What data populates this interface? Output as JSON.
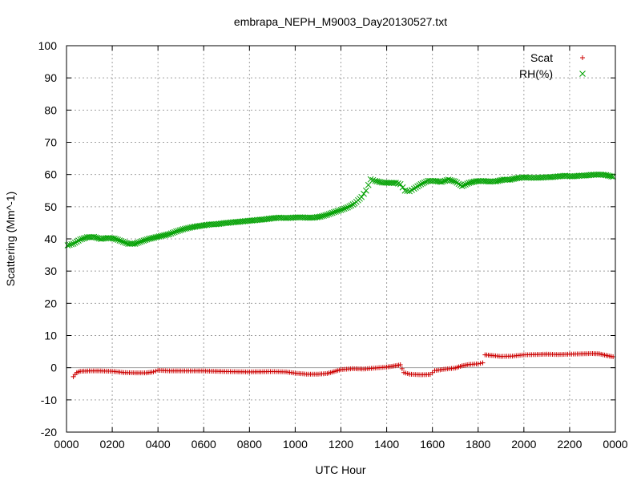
{
  "chart_data": {
    "type": "scatter",
    "title": "embrapa_NEPH_M9003_Day20130527.txt",
    "xlabel": "UTC Hour",
    "ylabel": "Scattering (Mm^-1)",
    "xlim": [
      0,
      24
    ],
    "ylim": [
      -20,
      100
    ],
    "x_ticks": [
      0,
      2,
      4,
      6,
      8,
      10,
      12,
      14,
      16,
      18,
      20,
      22,
      24
    ],
    "x_tick_labels": [
      "0000",
      "0200",
      "0400",
      "0600",
      "0800",
      "1000",
      "1200",
      "1400",
      "1600",
      "1800",
      "2000",
      "2200",
      "0000"
    ],
    "y_ticks": [
      -20,
      -10,
      0,
      10,
      20,
      30,
      40,
      50,
      60,
      70,
      80,
      90,
      100
    ],
    "y_tick_labels": [
      "-20",
      "-10",
      "0",
      "10",
      "20",
      "30",
      "40",
      "50",
      "60",
      "70",
      "80",
      "90",
      "100"
    ],
    "grid": true,
    "zero_line": true,
    "legend_position": "top-right",
    "series": [
      {
        "name": "Scat",
        "marker": "plus",
        "color": "#cc0000",
        "points": [
          [
            0.3,
            -2.8
          ],
          [
            0.45,
            -1.5
          ],
          [
            0.6,
            -1.1
          ],
          [
            1.0,
            -1.0
          ],
          [
            1.5,
            -1.0
          ],
          [
            2.0,
            -1.1
          ],
          [
            2.5,
            -1.5
          ],
          [
            3.0,
            -1.6
          ],
          [
            3.5,
            -1.6
          ],
          [
            3.8,
            -1.3
          ],
          [
            4.0,
            -0.8
          ],
          [
            4.5,
            -1.0
          ],
          [
            5.0,
            -1.0
          ],
          [
            6.0,
            -1.0
          ],
          [
            7.0,
            -1.2
          ],
          [
            8.0,
            -1.3
          ],
          [
            9.0,
            -1.2
          ],
          [
            9.6,
            -1.3
          ],
          [
            10.0,
            -1.7
          ],
          [
            10.5,
            -2.0
          ],
          [
            11.0,
            -2.0
          ],
          [
            11.4,
            -1.8
          ],
          [
            11.7,
            -1.2
          ],
          [
            12.0,
            -0.6
          ],
          [
            12.5,
            -0.3
          ],
          [
            13.0,
            -0.4
          ],
          [
            13.5,
            -0.1
          ],
          [
            14.0,
            0.2
          ],
          [
            14.3,
            0.5
          ],
          [
            14.6,
            0.9
          ],
          [
            14.75,
            -1.5
          ],
          [
            15.0,
            -2.0
          ],
          [
            15.5,
            -2.2
          ],
          [
            15.9,
            -2.1
          ],
          [
            16.1,
            -0.9
          ],
          [
            16.5,
            -0.5
          ],
          [
            17.0,
            -0.1
          ],
          [
            17.3,
            0.6
          ],
          [
            17.6,
            1.0
          ],
          [
            18.0,
            1.2
          ],
          [
            18.2,
            1.5
          ],
          [
            18.3,
            4.0
          ],
          [
            18.6,
            3.8
          ],
          [
            19.0,
            3.5
          ],
          [
            19.5,
            3.6
          ],
          [
            20.0,
            4.0
          ],
          [
            20.5,
            4.1
          ],
          [
            21.0,
            4.2
          ],
          [
            21.5,
            4.1
          ],
          [
            22.0,
            4.2
          ],
          [
            22.5,
            4.3
          ],
          [
            23.0,
            4.4
          ],
          [
            23.3,
            4.3
          ],
          [
            23.6,
            3.8
          ],
          [
            23.9,
            3.4
          ]
        ]
      },
      {
        "name": "RH(%)",
        "marker": "x",
        "color": "#00a000",
        "points": [
          [
            0.05,
            38.0
          ],
          [
            0.3,
            38.5
          ],
          [
            0.6,
            39.8
          ],
          [
            0.9,
            40.5
          ],
          [
            1.2,
            40.6
          ],
          [
            1.5,
            40.0
          ],
          [
            1.8,
            40.3
          ],
          [
            2.1,
            40.1
          ],
          [
            2.4,
            39.3
          ],
          [
            2.7,
            38.5
          ],
          [
            3.0,
            38.5
          ],
          [
            3.3,
            39.3
          ],
          [
            3.6,
            40.0
          ],
          [
            3.9,
            40.5
          ],
          [
            4.2,
            41.0
          ],
          [
            4.5,
            41.5
          ],
          [
            4.8,
            42.3
          ],
          [
            5.1,
            43.0
          ],
          [
            5.4,
            43.5
          ],
          [
            5.7,
            43.9
          ],
          [
            6.0,
            44.2
          ],
          [
            6.3,
            44.5
          ],
          [
            6.6,
            44.6
          ],
          [
            6.9,
            44.9
          ],
          [
            7.2,
            45.1
          ],
          [
            7.5,
            45.3
          ],
          [
            7.8,
            45.5
          ],
          [
            8.1,
            45.7
          ],
          [
            8.4,
            45.9
          ],
          [
            8.7,
            46.1
          ],
          [
            9.0,
            46.4
          ],
          [
            9.3,
            46.6
          ],
          [
            9.6,
            46.5
          ],
          [
            9.9,
            46.6
          ],
          [
            10.2,
            46.7
          ],
          [
            10.5,
            46.6
          ],
          [
            10.8,
            46.6
          ],
          [
            11.1,
            46.9
          ],
          [
            11.4,
            47.5
          ],
          [
            11.7,
            48.3
          ],
          [
            12.0,
            49.0
          ],
          [
            12.3,
            49.8
          ],
          [
            12.6,
            51.0
          ],
          [
            12.9,
            53.0
          ],
          [
            13.1,
            55.0
          ],
          [
            13.3,
            58.5
          ],
          [
            13.5,
            58.0
          ],
          [
            13.8,
            57.5
          ],
          [
            14.1,
            57.4
          ],
          [
            14.4,
            57.4
          ],
          [
            14.6,
            57.0
          ],
          [
            14.8,
            55.0
          ],
          [
            15.0,
            54.8
          ],
          [
            15.2,
            55.6
          ],
          [
            15.5,
            57.0
          ],
          [
            15.8,
            58.0
          ],
          [
            16.1,
            58.0
          ],
          [
            16.4,
            57.7
          ],
          [
            16.7,
            58.4
          ],
          [
            17.0,
            57.8
          ],
          [
            17.3,
            56.4
          ],
          [
            17.6,
            57.4
          ],
          [
            17.9,
            57.9
          ],
          [
            18.2,
            58.0
          ],
          [
            18.5,
            57.8
          ],
          [
            18.8,
            57.9
          ],
          [
            19.1,
            58.4
          ],
          [
            19.4,
            58.4
          ],
          [
            19.7,
            58.9
          ],
          [
            20.0,
            59.1
          ],
          [
            20.3,
            59.0
          ],
          [
            20.6,
            59.0
          ],
          [
            20.9,
            59.1
          ],
          [
            21.2,
            59.2
          ],
          [
            21.5,
            59.4
          ],
          [
            21.8,
            59.6
          ],
          [
            22.1,
            59.4
          ],
          [
            22.4,
            59.6
          ],
          [
            22.7,
            59.7
          ],
          [
            23.0,
            59.9
          ],
          [
            23.3,
            60.0
          ],
          [
            23.6,
            59.8
          ],
          [
            23.9,
            59.3
          ]
        ]
      }
    ]
  }
}
